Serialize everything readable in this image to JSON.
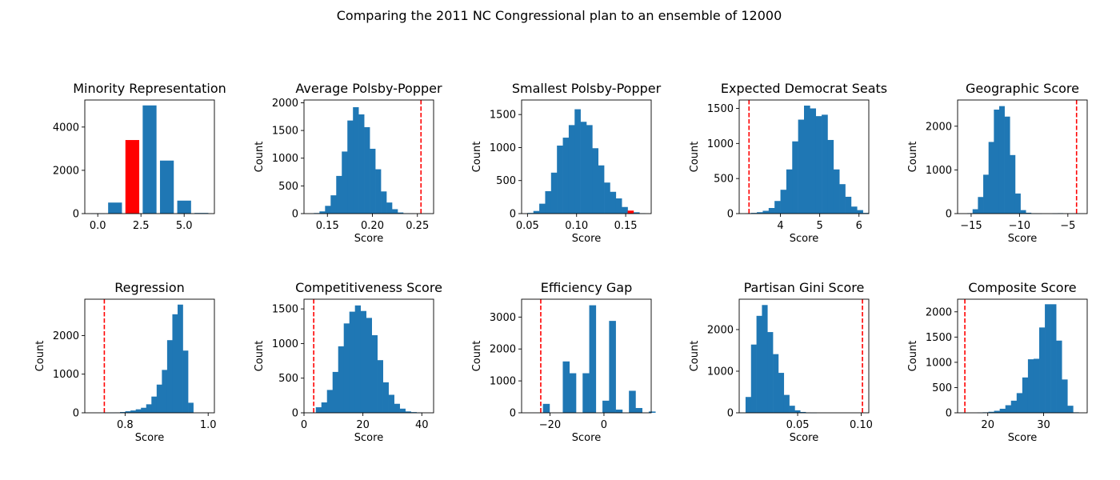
{
  "figure": {
    "suptitle": "Comparing the 2011 NC Congressional plan to an ensemble of 12000"
  },
  "colors": {
    "bar": "#1f77b4",
    "highlight": "#ff0000",
    "marker": "#ff0000"
  },
  "chart_data": [
    {
      "type": "bar",
      "title": "Minority Representation",
      "xlabel": "",
      "ylabel": "",
      "xlim": [
        -0.75,
        6.75
      ],
      "ylim": [
        0,
        5250
      ],
      "xticks": [
        {
          "v": 0,
          "label": "0.0"
        },
        {
          "v": 2.5,
          "label": "2.5"
        },
        {
          "v": 5,
          "label": "5.0"
        }
      ],
      "yticks": [
        {
          "v": 0,
          "label": "0"
        },
        {
          "v": 2000,
          "label": "2000"
        },
        {
          "v": 4000,
          "label": "4000"
        }
      ],
      "bar_width": 0.8,
      "x": [
        0,
        1,
        2,
        3,
        4,
        5,
        6
      ],
      "values": [
        5,
        510,
        3400,
        5000,
        2450,
        600,
        30
      ],
      "highlight_index": 2
    },
    {
      "type": "bar",
      "title": "Average Polsby-Popper",
      "xlabel": "Score",
      "ylabel": "Count",
      "xlim": [
        0.124,
        0.268
      ],
      "ylim": [
        0,
        2050
      ],
      "xticks": [
        {
          "v": 0.15,
          "label": "0.15"
        },
        {
          "v": 0.2,
          "label": "0.20"
        },
        {
          "v": 0.25,
          "label": "0.25"
        }
      ],
      "yticks": [
        {
          "v": 0,
          "label": "0"
        },
        {
          "v": 500,
          "label": "500"
        },
        {
          "v": 1000,
          "label": "1000"
        },
        {
          "v": 1500,
          "label": "1500"
        },
        {
          "v": 2000,
          "label": "2000"
        }
      ],
      "bin_start": 0.135,
      "bin_width": 0.0062,
      "values": [
        10,
        40,
        140,
        330,
        680,
        1120,
        1680,
        1920,
        1790,
        1560,
        1170,
        800,
        400,
        200,
        80,
        20,
        5,
        2
      ],
      "marker_x": 0.254
    },
    {
      "type": "bar",
      "title": "Smallest Polsby-Popper",
      "xlabel": "Score",
      "ylabel": "Count",
      "xlim": [
        0.044,
        0.176
      ],
      "ylim": [
        0,
        1720
      ],
      "xticks": [
        {
          "v": 0.05,
          "label": "0.05"
        },
        {
          "v": 0.1,
          "label": "0.10"
        },
        {
          "v": 0.15,
          "label": "0.15"
        }
      ],
      "yticks": [
        {
          "v": 0,
          "label": "0"
        },
        {
          "v": 500,
          "label": "500"
        },
        {
          "v": 1000,
          "label": "1000"
        },
        {
          "v": 1500,
          "label": "1500"
        }
      ],
      "bin_start": 0.05,
      "bin_width": 0.006,
      "values": [
        10,
        40,
        150,
        340,
        620,
        1030,
        1150,
        1340,
        1580,
        1390,
        1340,
        990,
        730,
        470,
        330,
        230,
        100,
        45,
        20,
        5
      ],
      "highlight_index": 17
    },
    {
      "type": "bar",
      "title": "Expected Democrat Seats",
      "xlabel": "Score",
      "ylabel": "Count",
      "xlim": [
        2.95,
        6.25
      ],
      "ylim": [
        0,
        1620
      ],
      "xticks": [
        {
          "v": 4,
          "label": "4"
        },
        {
          "v": 5,
          "label": "5"
        },
        {
          "v": 6,
          "label": "6"
        }
      ],
      "yticks": [
        {
          "v": 0,
          "label": "0"
        },
        {
          "v": 500,
          "label": "500"
        },
        {
          "v": 1000,
          "label": "1000"
        },
        {
          "v": 1500,
          "label": "1500"
        }
      ],
      "bin_start": 3.1,
      "bin_width": 0.15,
      "values": [
        5,
        10,
        20,
        40,
        80,
        180,
        340,
        630,
        1030,
        1340,
        1540,
        1500,
        1390,
        1410,
        1050,
        630,
        420,
        240,
        100,
        50,
        10
      ],
      "marker_x": 3.2
    },
    {
      "type": "bar",
      "title": "Geographic Score",
      "xlabel": "Score",
      "ylabel": "Count",
      "xlim": [
        -16.4,
        -3.0
      ],
      "ylim": [
        0,
        2600
      ],
      "xticks": [
        {
          "v": -15,
          "label": "−15"
        },
        {
          "v": -10,
          "label": "−10"
        },
        {
          "v": -5,
          "label": "−5"
        }
      ],
      "yticks": [
        {
          "v": 0,
          "label": "0"
        },
        {
          "v": 1000,
          "label": "1000"
        },
        {
          "v": 2000,
          "label": "2000"
        }
      ],
      "bin_start": -15.4,
      "bin_width": 0.55,
      "values": [
        10,
        100,
        380,
        890,
        1640,
        2380,
        2460,
        2220,
        1340,
        460,
        80,
        20,
        5,
        2,
        0,
        0,
        5,
        10
      ],
      "marker_x": -4.1
    },
    {
      "type": "bar",
      "title": "Regression",
      "xlabel": "Score",
      "ylabel": "Count",
      "xlim": [
        0.703,
        1.015
      ],
      "ylim": [
        0,
        2940
      ],
      "xticks": [
        {
          "v": 0.8,
          "label": "0.8"
        },
        {
          "v": 1.0,
          "label": "1.0"
        }
      ],
      "yticks": [
        {
          "v": 0,
          "label": "0"
        },
        {
          "v": 1000,
          "label": "1000"
        },
        {
          "v": 2000,
          "label": "2000"
        }
      ],
      "bin_start": 0.75,
      "bin_width": 0.0126,
      "values": [
        3,
        5,
        10,
        20,
        40,
        60,
        90,
        130,
        220,
        420,
        730,
        1110,
        1880,
        2550,
        2800,
        1610,
        260
      ],
      "marker_x": 0.75
    },
    {
      "type": "bar",
      "title": "Competitiveness Score",
      "xlabel": "Score",
      "ylabel": "Count",
      "xlim": [
        0,
        44
      ],
      "ylim": [
        0,
        1640
      ],
      "xticks": [
        {
          "v": 0,
          "label": "0"
        },
        {
          "v": 20,
          "label": "20"
        },
        {
          "v": 40,
          "label": "40"
        }
      ],
      "yticks": [
        {
          "v": 0,
          "label": "0"
        },
        {
          "v": 500,
          "label": "500"
        },
        {
          "v": 1000,
          "label": "1000"
        },
        {
          "v": 1500,
          "label": "1500"
        }
      ],
      "bin_start": 4,
      "bin_width": 1.9,
      "values": [
        80,
        150,
        330,
        590,
        960,
        1290,
        1460,
        1550,
        1470,
        1370,
        1120,
        760,
        440,
        260,
        130,
        60,
        20,
        10,
        5
      ],
      "marker_x": 3.3
    },
    {
      "type": "bar",
      "title": "Efficiency Gap",
      "xlabel": "Score",
      "ylabel": "Count",
      "xlim": [
        -30.5,
        17.5
      ],
      "ylim": [
        0,
        3560
      ],
      "xticks": [
        {
          "v": -20,
          "label": "−20"
        },
        {
          "v": 0,
          "label": "0"
        }
      ],
      "yticks": [
        {
          "v": 0,
          "label": "0"
        },
        {
          "v": 1000,
          "label": "1000"
        },
        {
          "v": 2000,
          "label": "2000"
        },
        {
          "v": 3000,
          "label": "3000"
        }
      ],
      "bin_start": -22.6,
      "bin_width": 2.45,
      "values": [
        280,
        0,
        0,
        1610,
        1240,
        0,
        1240,
        3370,
        0,
        380,
        2880,
        100,
        0,
        690,
        150,
        0,
        40
      ],
      "marker_x": -23.4
    },
    {
      "type": "bar",
      "title": "Partisan Gini Score",
      "xlabel": "Score",
      "ylabel": "Count",
      "xlim": [
        0.004,
        0.106
      ],
      "ylim": [
        0,
        2730
      ],
      "xticks": [
        {
          "v": 0.05,
          "label": "0.05"
        },
        {
          "v": 0.1,
          "label": "0.10"
        }
      ],
      "yticks": [
        {
          "v": 0,
          "label": "0"
        },
        {
          "v": 1000,
          "label": "1000"
        },
        {
          "v": 2000,
          "label": "2000"
        }
      ],
      "bin_start": 0.009,
      "bin_width": 0.0043,
      "values": [
        380,
        1640,
        2330,
        2590,
        1940,
        1410,
        960,
        430,
        170,
        60,
        20,
        5,
        2
      ],
      "marker_x": 0.101
    },
    {
      "type": "bar",
      "title": "Composite Score",
      "xlabel": "Score",
      "ylabel": "Count",
      "xlim": [
        14.6,
        37.8
      ],
      "ylim": [
        0,
        2250
      ],
      "xticks": [
        {
          "v": 20,
          "label": "20"
        },
        {
          "v": 30,
          "label": "30"
        }
      ],
      "yticks": [
        {
          "v": 0,
          "label": "0"
        },
        {
          "v": 500,
          "label": "500"
        },
        {
          "v": 1000,
          "label": "1000"
        },
        {
          "v": 1500,
          "label": "1500"
        },
        {
          "v": 2000,
          "label": "2000"
        }
      ],
      "bin_start": 18.1,
      "bin_width": 1.01,
      "values": [
        5,
        10,
        20,
        40,
        80,
        150,
        240,
        390,
        700,
        1060,
        1070,
        1690,
        2150,
        2150,
        1430,
        660,
        140,
        10
      ],
      "marker_x": 15.9
    }
  ]
}
